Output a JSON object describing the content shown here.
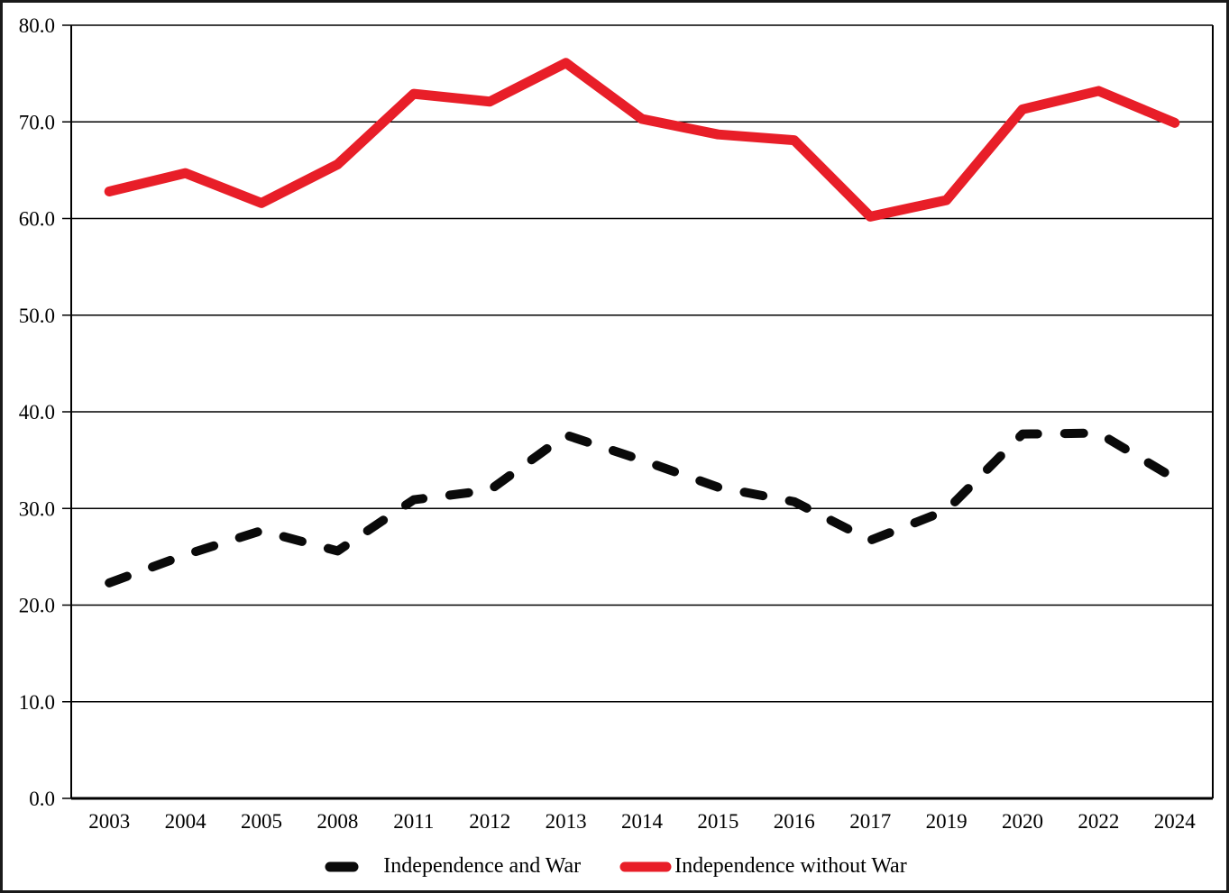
{
  "page": {
    "background_color": "#ffffff",
    "border_color": "#1a1a1a"
  },
  "chart_data": {
    "type": "line",
    "title": "",
    "xlabel": "",
    "ylabel": "",
    "grid": true,
    "legend_position": "bottom-center",
    "ylim": [
      0,
      80
    ],
    "yticks": [
      0,
      10,
      20,
      30,
      40,
      50,
      60,
      70,
      80
    ],
    "ytick_labels": [
      "0.0",
      "10.0",
      "20.0",
      "30.0",
      "40.0",
      "50.0",
      "60.0",
      "70.0",
      "80.0"
    ],
    "categories": [
      "2003",
      "2004",
      "2005",
      "2008",
      "2011",
      "2012",
      "2013",
      "2014",
      "2015",
      "2016",
      "2017",
      "2019",
      "2020",
      "2022",
      "2024"
    ],
    "series": [
      {
        "name": "Independence and War",
        "color": "#0a0a0a",
        "line_style": "dashed",
        "values": [
          22.3,
          25.2,
          27.7,
          25.6,
          30.9,
          31.9,
          37.6,
          35.0,
          32.2,
          30.7,
          26.7,
          29.8,
          37.7,
          37.8,
          33.1
        ]
      },
      {
        "name": "Independence without War",
        "color": "#e81e28",
        "line_style": "solid",
        "values": [
          62.8,
          64.7,
          61.6,
          65.6,
          72.9,
          72.1,
          76.1,
          70.3,
          68.7,
          68.1,
          60.2,
          61.9,
          71.3,
          73.2,
          69.9
        ]
      }
    ]
  }
}
